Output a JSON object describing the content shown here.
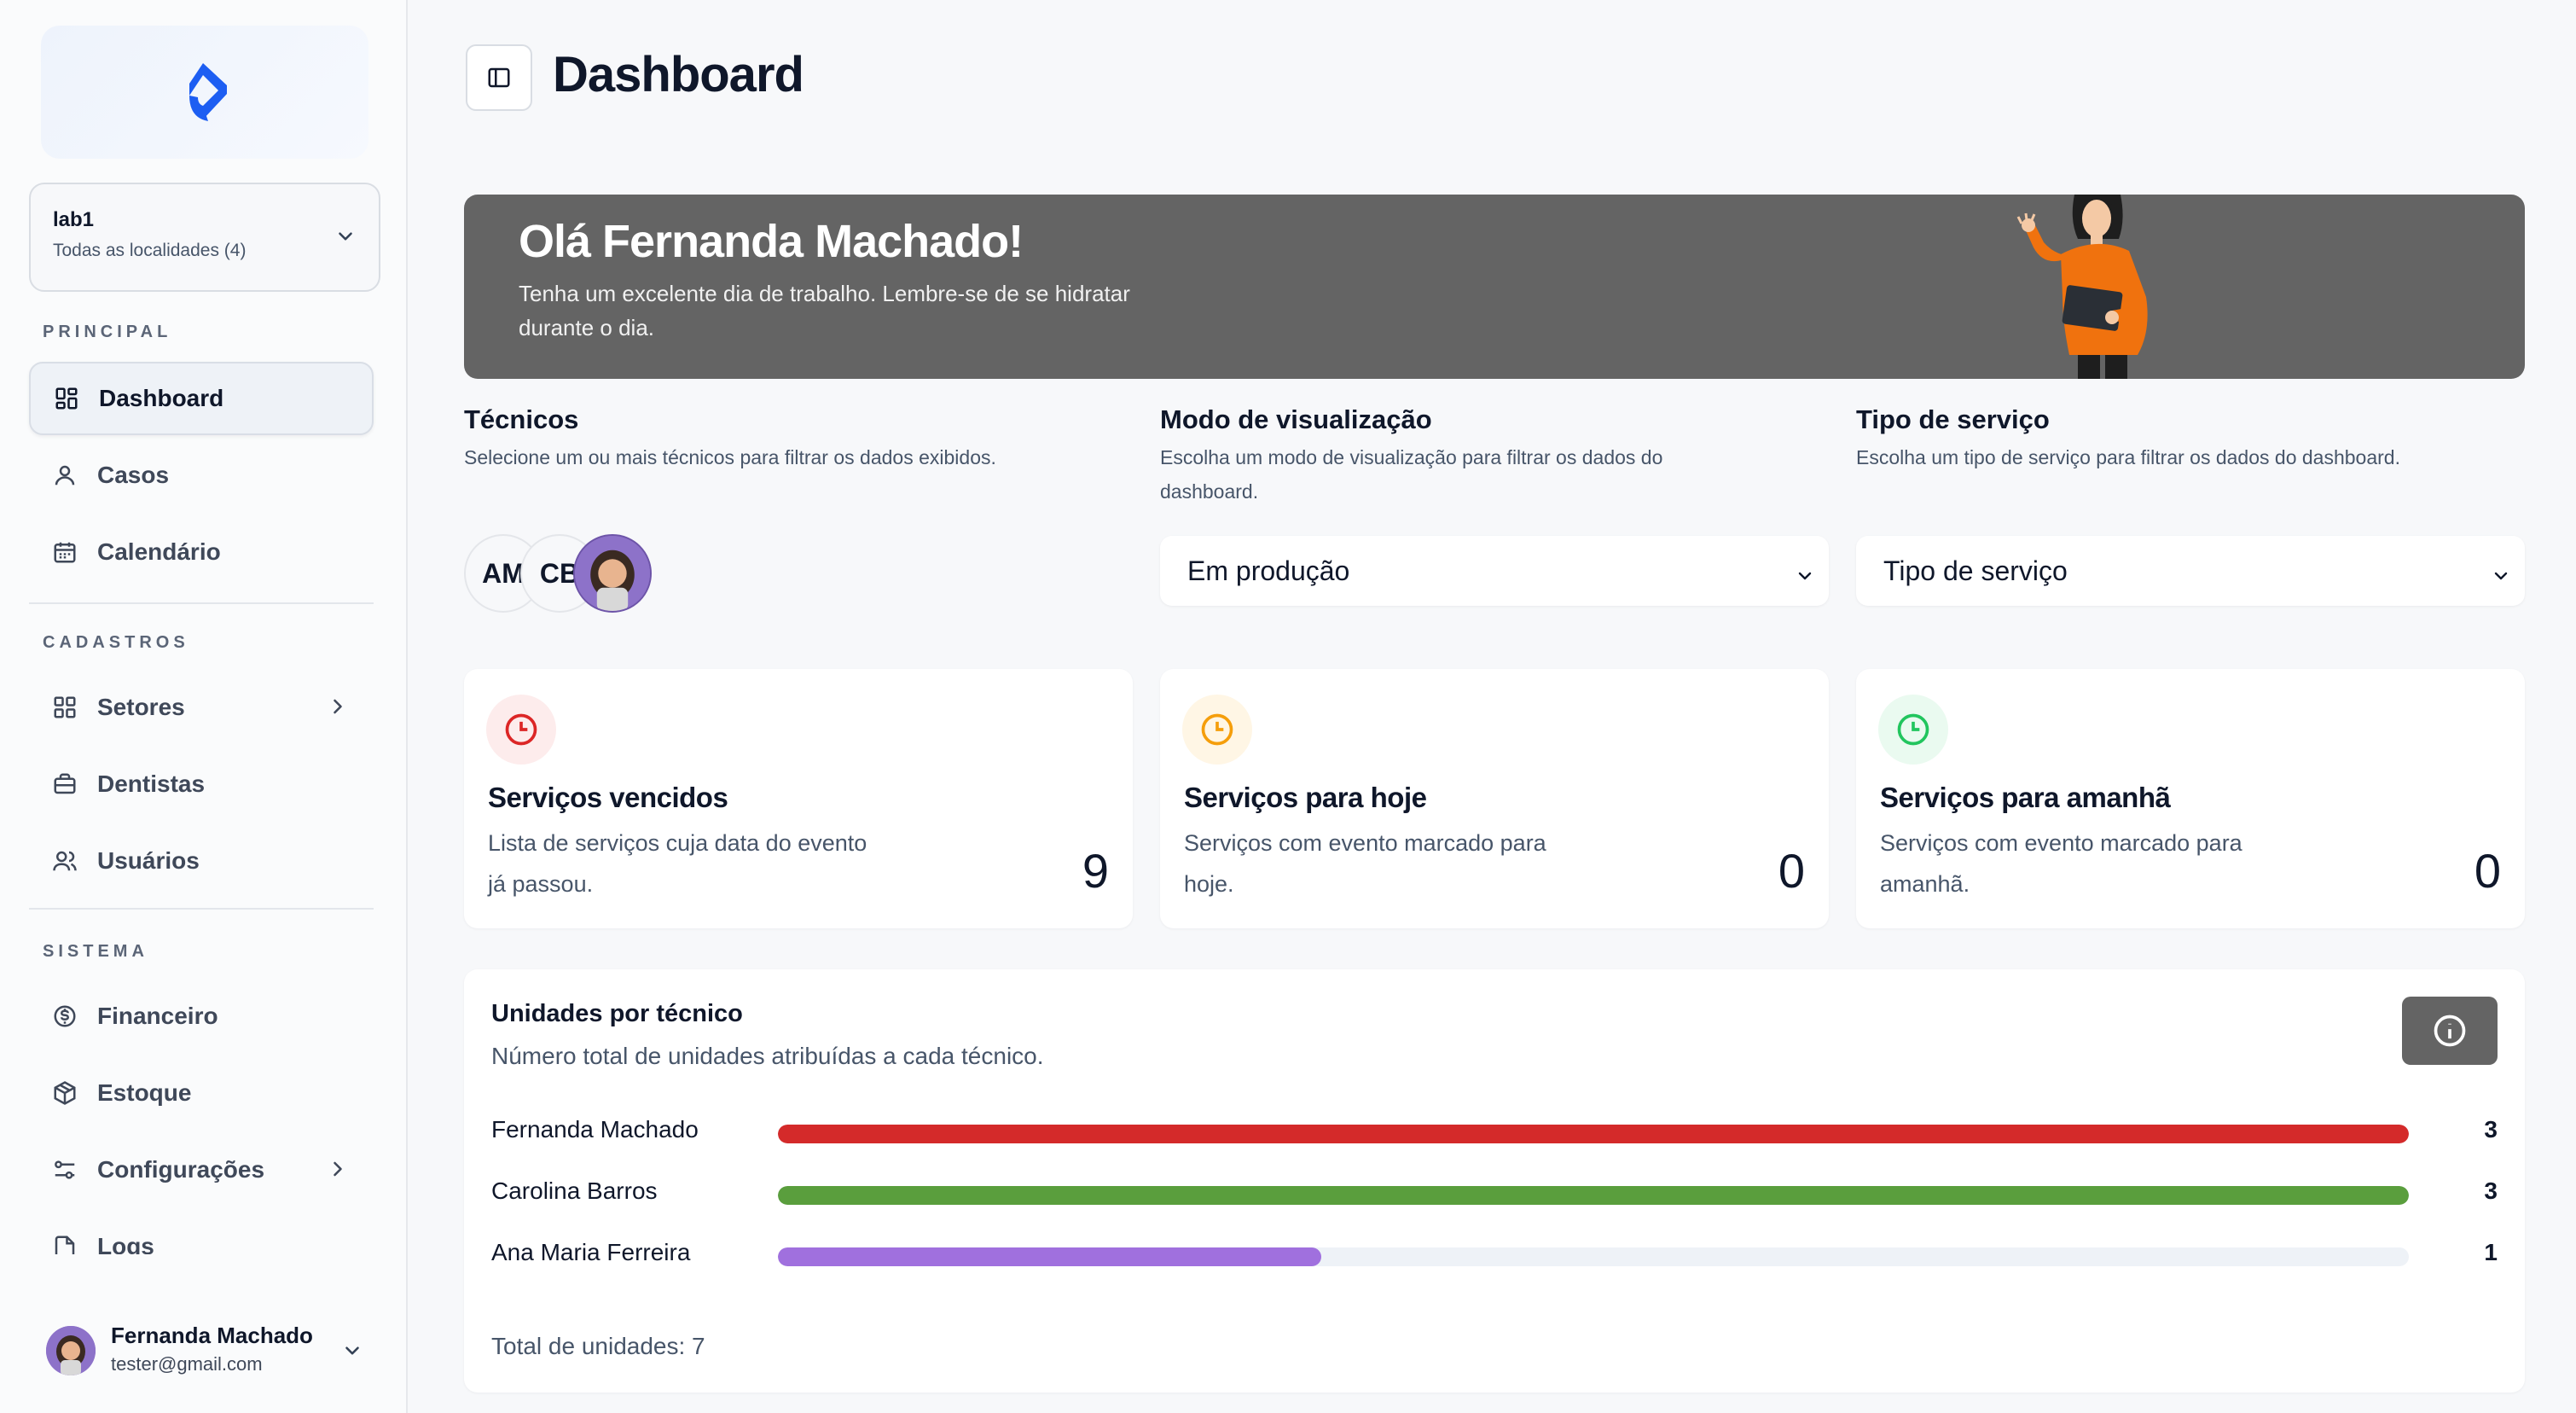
{
  "sidebar": {
    "location": {
      "title": "lab1",
      "subtitle": "Todas as localidades (4)"
    },
    "sections": {
      "principal": "PRINCIPAL",
      "cadastros": "CADASTROS",
      "sistema": "SISTEMA"
    },
    "items": {
      "dashboard": "Dashboard",
      "casos": "Casos",
      "calendario": "Calendário",
      "setores": "Setores",
      "dentistas": "Dentistas",
      "usuarios": "Usuários",
      "financeiro": "Financeiro",
      "estoque": "Estoque",
      "configuracoes": "Configurações",
      "logs": "Logs"
    },
    "user": {
      "name": "Fernanda Machado",
      "email": "tester@gmail.com"
    }
  },
  "header": {
    "title": "Dashboard"
  },
  "banner": {
    "title": "Olá Fernanda Machado!",
    "subtitle": "Tenha um excelente dia de trabalho. Lembre-se de se hidratar durante o dia."
  },
  "filters": {
    "tecnicos": {
      "title": "Técnicos",
      "desc": "Selecione um ou mais técnicos para filtrar os dados exibidos.",
      "avatars": [
        "AM",
        "CB"
      ]
    },
    "modo": {
      "title": "Modo de visualização",
      "desc": "Escolha um modo de visualização para filtrar os dados do dashboard.",
      "value": "Em produção"
    },
    "tipo": {
      "title": "Tipo de serviço",
      "desc": "Escolha um tipo de serviço para filtrar os dados do dashboard.",
      "value": "Tipo de serviço"
    }
  },
  "cards": [
    {
      "title": "Serviços vencidos",
      "desc": "Lista de serviços cuja data do evento já passou.",
      "value": "9",
      "color": "#dc2626",
      "bg": "#fdecec"
    },
    {
      "title": "Serviços para hoje",
      "desc": "Serviços com evento marcado para hoje.",
      "value": "0",
      "color": "#f59e0b",
      "bg": "#fff6e5"
    },
    {
      "title": "Serviços para amanhã",
      "desc": "Serviços com evento marcado para amanhã.",
      "value": "0",
      "color": "#22c55e",
      "bg": "#eafaf0"
    }
  ],
  "units": {
    "title": "Unidades por técnico",
    "desc": "Número total de unidades atribuídas a cada técnico.",
    "rows": [
      {
        "name": "Fernanda Machado",
        "value": "3",
        "fraction": 1.0,
        "color": "#d42a2a"
      },
      {
        "name": "Carolina Barros",
        "value": "3",
        "fraction": 1.0,
        "color": "#5a9e3d"
      },
      {
        "name": "Ana Maria Ferreira",
        "value": "1",
        "fraction": 0.333,
        "color": "#a070de"
      }
    ],
    "total": "Total de unidades: 7"
  }
}
